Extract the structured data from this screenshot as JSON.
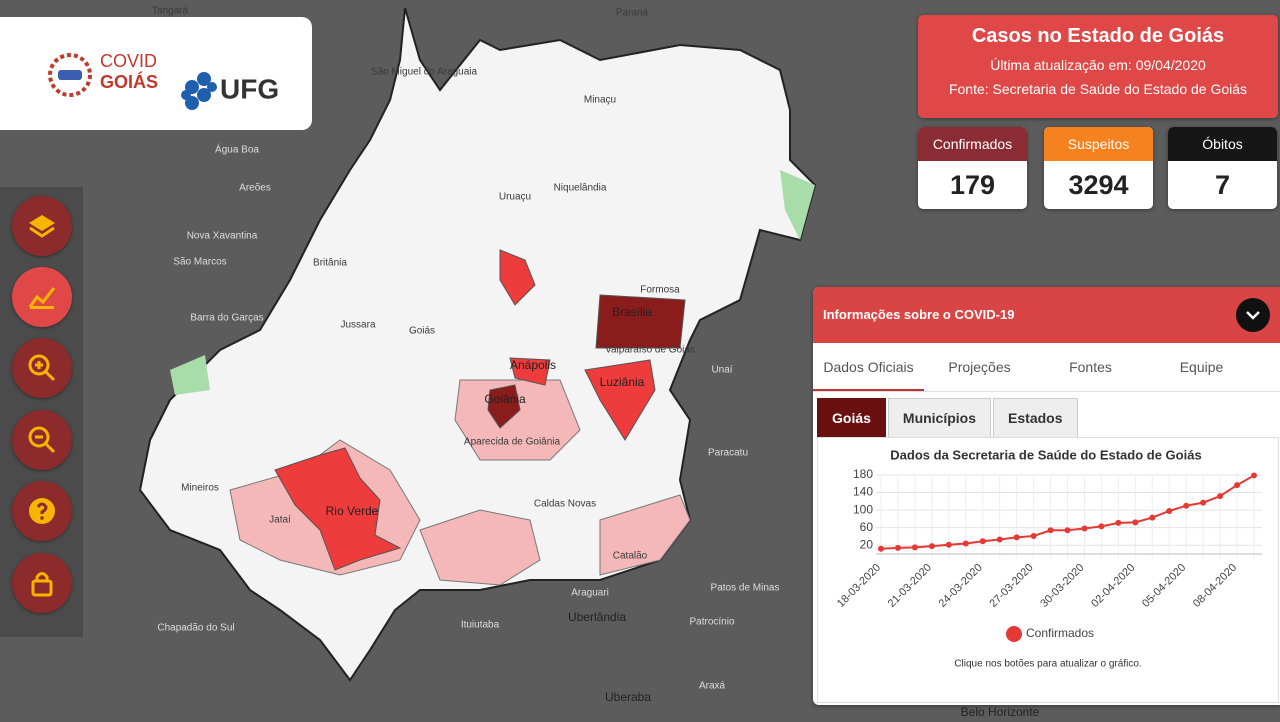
{
  "header": {
    "logo": [
      "COVID",
      "GOIÁS"
    ],
    "partner": "UFG"
  },
  "summary": {
    "title": "Casos no Estado de Goiás",
    "updated": "Última atualização em: 09/04/2020",
    "source": "Fonte: Secretaria de Saúde do Estado de Goiás",
    "cards": [
      {
        "label": "Confirmados",
        "value": 179
      },
      {
        "label": "Suspeitos",
        "value": 3294
      },
      {
        "label": "Óbitos",
        "value": 7
      }
    ]
  },
  "panel": {
    "title": "Informações sobre o COVID-19",
    "tabs": [
      "Dados Oficiais",
      "Projeções",
      "Fontes",
      "Equipe"
    ],
    "subtabs": [
      "Goiás",
      "Municípios",
      "Estados"
    ],
    "note": "Clique nos botões para atualizar o gráfico."
  },
  "chart_data": {
    "type": "line",
    "title": "Dados da Secretaria de Saúde do Estado de Goiás",
    "categories": [
      "18-03-2020",
      null,
      null,
      "21-03-2020",
      null,
      null,
      "24-03-2020",
      null,
      null,
      "27-03-2020",
      null,
      null,
      "30-03-2020",
      null,
      null,
      "02-04-2020",
      null,
      null,
      "05-04-2020",
      null,
      null,
      "08-04-2020",
      null
    ],
    "series": [
      {
        "name": "Confirmados",
        "color": "#e53935",
        "values": [
          12,
          14,
          15,
          18,
          21,
          24,
          29,
          33,
          38,
          41,
          54,
          54,
          58,
          63,
          71,
          72,
          83,
          98,
          110,
          117,
          132,
          157,
          179
        ]
      }
    ],
    "ylim": [
      0,
      180
    ],
    "yticks": [
      20,
      60,
      100,
      140,
      180
    ],
    "grid": true
  },
  "map": {
    "labels": [
      "Tangará",
      "Paraná",
      "São Miguel do Araguaia",
      "Minaçu",
      "Niquelândia",
      "Água Boa",
      "Nova Xavantina",
      "Britânia",
      "Formosa",
      "Brasília",
      "Anápolis",
      "Luziânia",
      "Goiânia",
      "Aparecida de Goiânia",
      "Valparaíso de Goiás",
      "Barra do Garças",
      "Rio Verde",
      "Jataí",
      "Mineiros",
      "Caldas Novas",
      "Catalão",
      "Paracatu",
      "Unaí",
      "Patos de Minas",
      "Uberlândia",
      "Uberaba",
      "Araguari",
      "Ituiutaba",
      "Patrocínio",
      "Araxá",
      "Belo Horizonte",
      "Chapadão do Sul",
      "Goiás",
      "Jussara",
      "Uruaçu",
      "São Marcos",
      "Areões"
    ]
  }
}
